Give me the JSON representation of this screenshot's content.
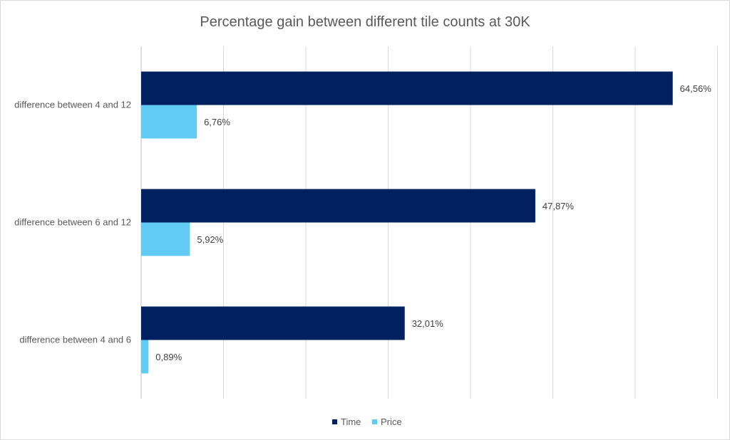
{
  "chart_data": {
    "type": "bar",
    "orientation": "horizontal",
    "title": "Percentage gain between different tile counts at 30K",
    "categories": [
      "difference between 4 and 12",
      "difference between 6 and 12",
      "difference between 4 and 6"
    ],
    "series": [
      {
        "name": "Time",
        "color": "#002060",
        "values": [
          64.56,
          47.87,
          32.01
        ],
        "labels": [
          "64,56%",
          "47,87%",
          "32,01%"
        ]
      },
      {
        "name": "Price",
        "color": "#61CBF4",
        "values": [
          6.76,
          5.92,
          0.89
        ],
        "labels": [
          "6,76%",
          "5,92%",
          "0,89%"
        ]
      }
    ],
    "xlim": [
      0,
      70
    ],
    "grid": true,
    "legend_position": "bottom"
  }
}
